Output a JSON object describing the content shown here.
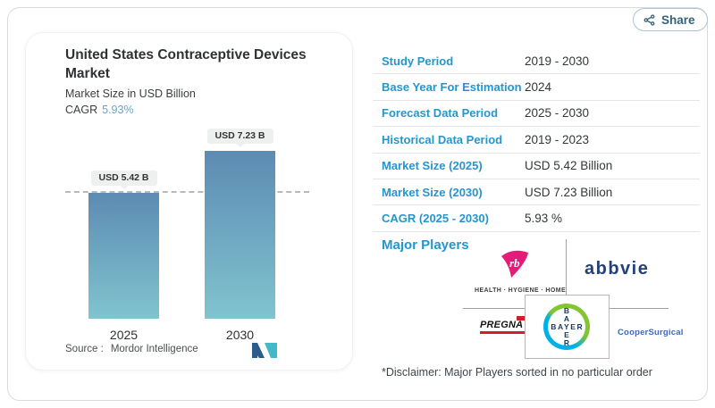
{
  "colors": {
    "label_blue": "#2496cd",
    "cagr_blue": "#6ba3c9",
    "share_color": "#33627e",
    "bar_top": "#5d8bb3",
    "bar_bottom": "#80c4cf"
  },
  "share_button": {
    "label": "Share"
  },
  "card": {
    "title": "United States Contraceptive Devices Market",
    "subtitle": "Market Size in USD Billion",
    "cagr_label": "CAGR",
    "cagr_value": "5.93%",
    "source_label": "Source :",
    "source_name": "Mordor Intelligence"
  },
  "chart_data": {
    "type": "bar",
    "title": "United States Contraceptive Devices Market",
    "ylabel": "Market Size in USD Billion",
    "categories": [
      "2025",
      "2030"
    ],
    "values": [
      5.42,
      7.23
    ],
    "bar_labels": [
      "USD 5.42 B",
      "USD 7.23 B"
    ],
    "cagr_percent": 5.93,
    "dashed_reference_value": 5.42,
    "ylim": [
      0,
      9.5
    ],
    "grid": false,
    "legend": false,
    "bar_gradient_top": "#5d8bb3",
    "bar_gradient_bottom": "#80c4cf"
  },
  "info_table": {
    "rows": [
      {
        "label": "Study Period",
        "value": "2019 - 2030"
      },
      {
        "label": "Base Year For Estimation",
        "value": "2024"
      },
      {
        "label": "Forecast Data Period",
        "value": "2025 - 2030"
      },
      {
        "label": "Historical Data Period",
        "value": "2019 - 2023"
      },
      {
        "label": "Market Size (2025)",
        "value": "USD 5.42 Billion"
      },
      {
        "label": "Market Size (2030)",
        "value": "USD 7.23 Billion"
      },
      {
        "label": "CAGR (2025 - 2030)",
        "value": "5.93 %"
      }
    ]
  },
  "major_players": {
    "heading": "Major Players",
    "players": [
      {
        "name": "Reckitt Benckiser",
        "logo_text": "rb",
        "tagline": "HEALTH · HYGIENE · HOME"
      },
      {
        "name": "AbbVie",
        "logo_text": "abbvie"
      },
      {
        "name": "Pregna International",
        "logo_text": "PREGNA"
      },
      {
        "name": "Bayer",
        "logo_text": "BAYER"
      },
      {
        "name": "CooperSurgical",
        "logo_text": "CooperSurgical"
      }
    ],
    "disclaimer": "*Disclaimer: Major Players sorted in no particular order"
  }
}
